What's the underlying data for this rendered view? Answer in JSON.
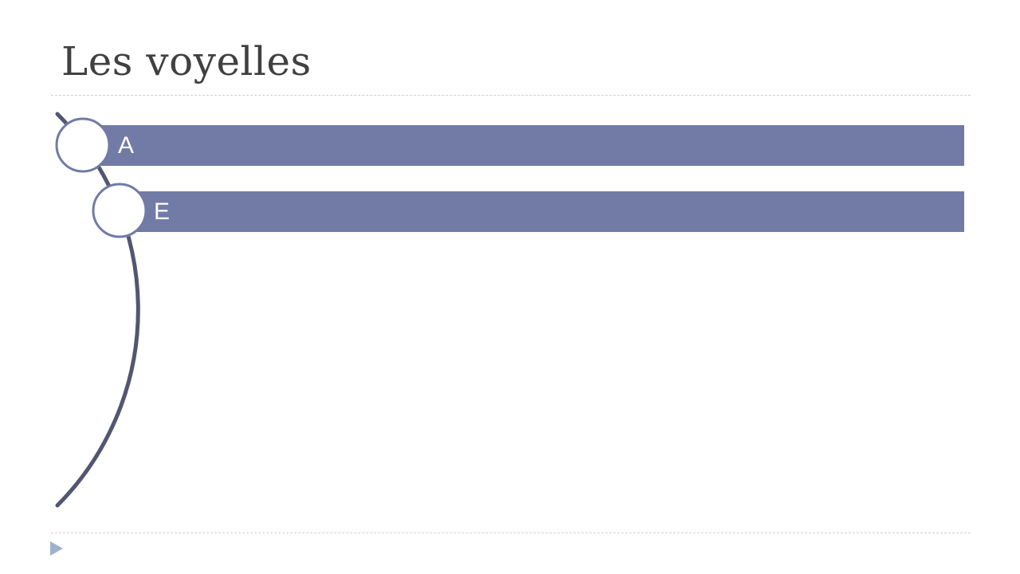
{
  "slide": {
    "title": "Les voyelles",
    "items": [
      {
        "label": "A"
      },
      {
        "label": "E"
      }
    ],
    "colors": {
      "bar": "#717ba6",
      "arc": "#535671",
      "circle_border": "#717ba6",
      "nav_arrow": "#9fb2cc"
    }
  }
}
